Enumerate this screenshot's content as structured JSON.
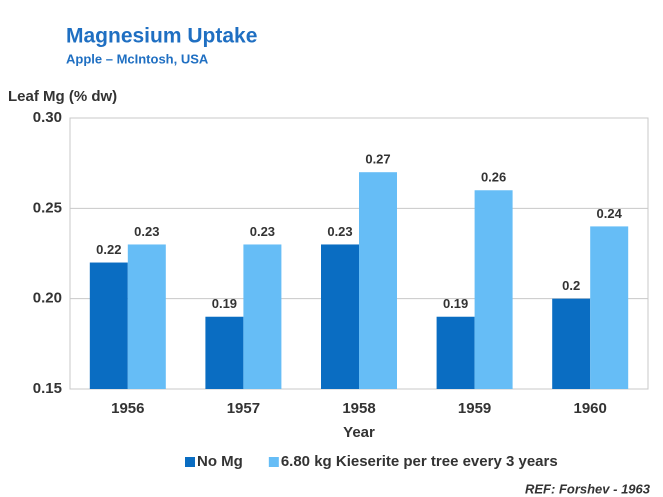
{
  "chart_data": {
    "type": "bar",
    "title": "Magnesium Uptake",
    "subtitle": "Apple – McIntosh, USA",
    "y_label": "Leaf Mg (% dw)",
    "x_label": "Year",
    "source": "REF: Forshev - 1963",
    "categories": [
      "1956",
      "1957",
      "1958",
      "1959",
      "1960"
    ],
    "series": [
      {
        "name": "No Mg",
        "color": "#0a6dc2",
        "values": [
          0.22,
          0.19,
          0.23,
          0.19,
          0.2
        ]
      },
      {
        "name": "6.80 kg Kieserite per tree every 3 years",
        "color": "#66bdf6",
        "values": [
          0.23,
          0.23,
          0.27,
          0.26,
          0.24
        ]
      }
    ],
    "ylim": [
      0.15,
      0.3
    ],
    "yticks": [
      {
        "value": 0.15,
        "label": "0.15"
      },
      {
        "value": 0.2,
        "label": "0.20"
      },
      {
        "value": 0.25,
        "label": "0.25"
      },
      {
        "value": 0.3,
        "label": "0.30"
      }
    ],
    "grid": true,
    "legend": "bottom"
  }
}
